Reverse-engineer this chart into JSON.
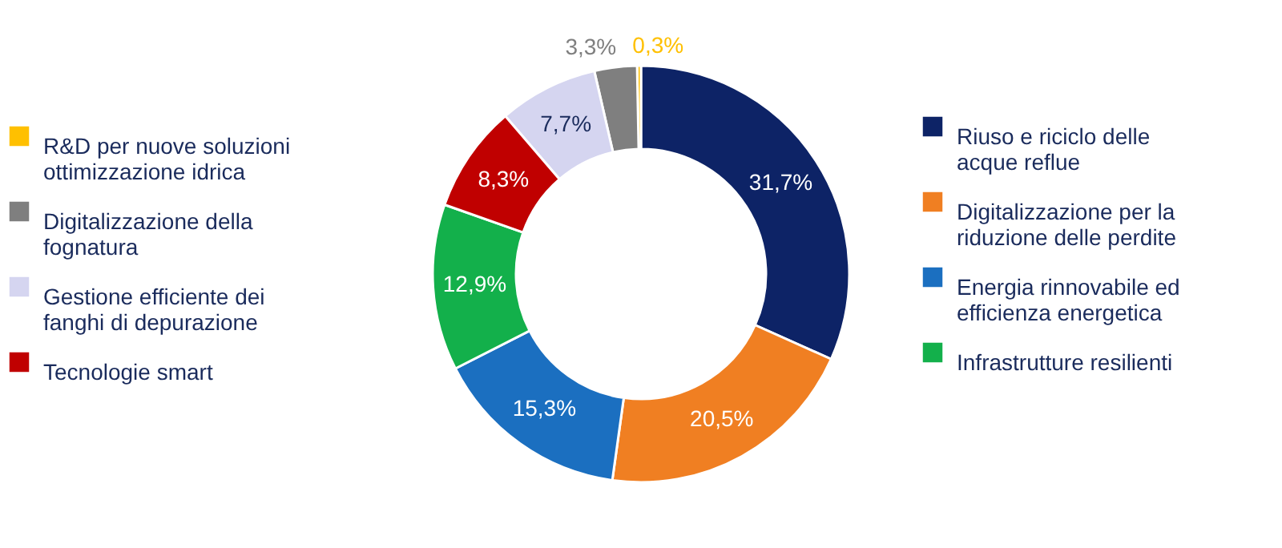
{
  "chart_data": {
    "type": "donut",
    "categories": [
      "Riuso e riciclo delle acque reflue",
      "Digitalizzazione per la riduzione delle perdite",
      "Energia rinnovabile ed efficienza energetica",
      "Infrastrutture resilienti",
      "Tecnologie smart",
      "Gestione efficiente dei fanghi di depurazione",
      "Digitalizzazione della fognatura",
      "R&D per nuove soluzioni ottimizzazione idrica"
    ],
    "values": [
      31.7,
      20.5,
      15.3,
      12.9,
      8.3,
      7.7,
      3.3,
      0.3
    ],
    "colors": [
      "#0d2366",
      "#f07f22",
      "#1b6fc0",
      "#13b04b",
      "#c00000",
      "#d5d5f0",
      "#7f7f7f",
      "#ffc000"
    ],
    "value_labels": [
      "31,7%",
      "20,5%",
      "15,3%",
      "12,9%",
      "8,3%",
      "7,7%",
      "3,3%",
      "0,3%"
    ],
    "legend": "left"
  }
}
